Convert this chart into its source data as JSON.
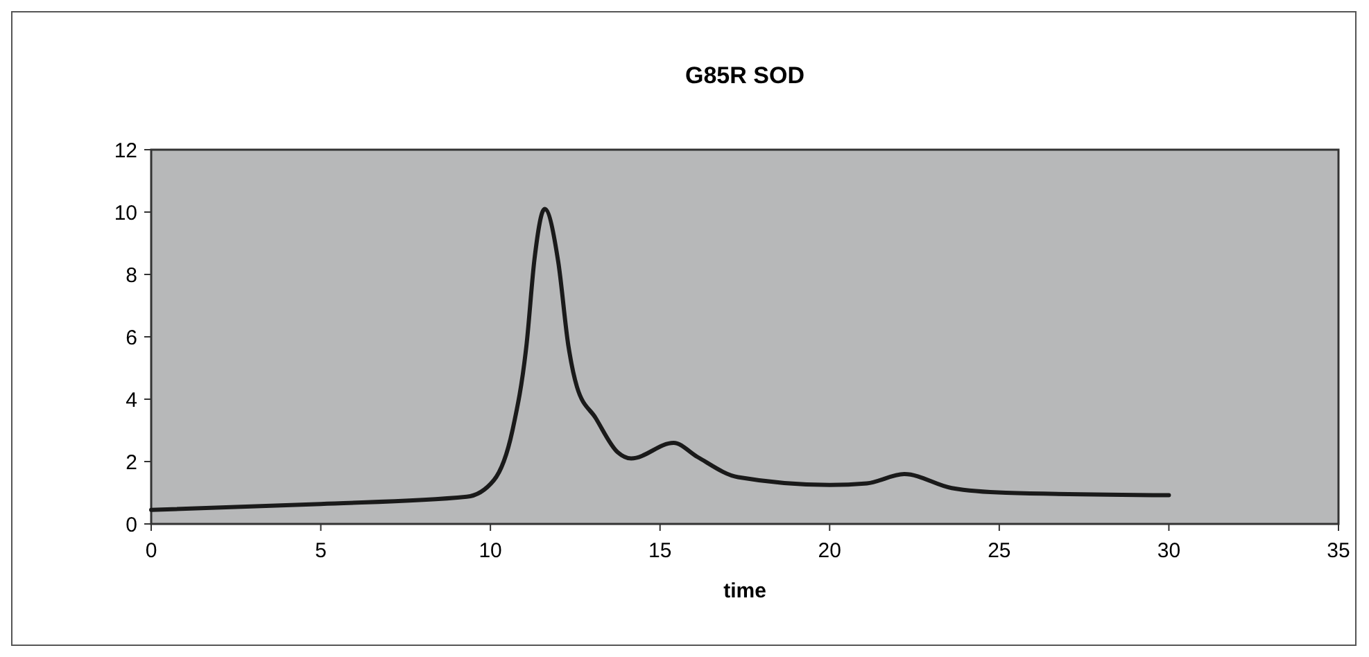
{
  "chart_data": {
    "type": "line",
    "title": "G85R SOD",
    "xlabel": "time",
    "xlim": [
      0,
      35
    ],
    "xticks": [
      0,
      5,
      10,
      15,
      20,
      25,
      30,
      35
    ],
    "ylim": [
      0,
      12
    ],
    "yticks": [
      0,
      2,
      4,
      6,
      8,
      10,
      12
    ],
    "grid": false,
    "marker": "none",
    "line_style": "solid",
    "series": [
      {
        "color": "#1a1a1a",
        "x": [
          0,
          5,
          9.3,
          10.1,
          10.65,
          11.07,
          11.3,
          11.6,
          12.0,
          12.3,
          12.55,
          13.1,
          13.75,
          14.15,
          15.4,
          16.1,
          17.3,
          20,
          21.1,
          22.2,
          23.6,
          25.2,
          30
        ],
        "values": [
          0.45,
          0.64,
          0.87,
          1.4,
          3,
          5.8,
          8.5,
          10.1,
          8.4,
          5.7,
          4.4,
          3.4,
          2.3,
          2.1,
          2.6,
          2.15,
          1.5,
          1.25,
          1.3,
          1.6,
          1.15,
          1.0,
          0.92
        ]
      }
    ]
  }
}
